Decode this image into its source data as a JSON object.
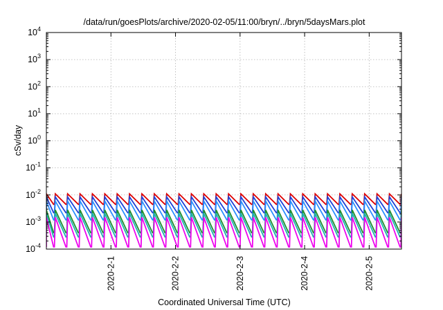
{
  "chart_data": {
    "type": "line",
    "title": "/data/run/goesPlots/archive/2020-02-05/11:00/bryn/../bryn/5daysMars.plot",
    "xlabel": "Coordinated Universal Time (UTC)",
    "ylabel": "cSv/day",
    "yscale": "log",
    "ylim": [
      0.0001,
      10000
    ],
    "xlim": [
      "2020-01-31T00:00",
      "2020-02-05T12:00"
    ],
    "yticks": [
      {
        "value": 0.0001,
        "base": "10",
        "exp": "-4"
      },
      {
        "value": 0.001,
        "base": "10",
        "exp": "-3"
      },
      {
        "value": 0.01,
        "base": "10",
        "exp": "-2"
      },
      {
        "value": 0.1,
        "base": "10",
        "exp": "-1"
      },
      {
        "value": 1,
        "base": "10",
        "exp": "0"
      },
      {
        "value": 10,
        "base": "10",
        "exp": "1"
      },
      {
        "value": 100,
        "base": "10",
        "exp": "2"
      },
      {
        "value": 1000,
        "base": "10",
        "exp": "3"
      },
      {
        "value": 10000,
        "base": "10",
        "exp": "4"
      }
    ],
    "xticks": [
      {
        "label": "2020-2-1",
        "value": "2020-02-01T00:00"
      },
      {
        "label": "2020-2-2",
        "value": "2020-02-02T00:00"
      },
      {
        "label": "2020-2-3",
        "value": "2020-02-03T00:00"
      },
      {
        "label": "2020-2-4",
        "value": "2020-02-04T00:00"
      },
      {
        "label": "2020-2-5",
        "value": "2020-02-05T00:00"
      }
    ],
    "grid": true,
    "legend": "none",
    "sawtooth_period_hours": 4.6,
    "series": [
      {
        "color": "#dd0000",
        "peak": 0.011,
        "trough": 0.0045
      },
      {
        "color": "#1f3fd6",
        "peak": 0.0085,
        "trough": 0.0022
      },
      {
        "color": "#2a8fff",
        "peak": 0.006,
        "trough": 0.0012
      },
      {
        "color": "#1f8f2f",
        "peak": 0.0028,
        "trough": 0.0004
      },
      {
        "color": "#20b0b0",
        "peak": 0.0021,
        "trough": 0.00028
      },
      {
        "color": "#ee00ee",
        "peak": 0.0015,
        "trough": 0.00012
      }
    ]
  }
}
